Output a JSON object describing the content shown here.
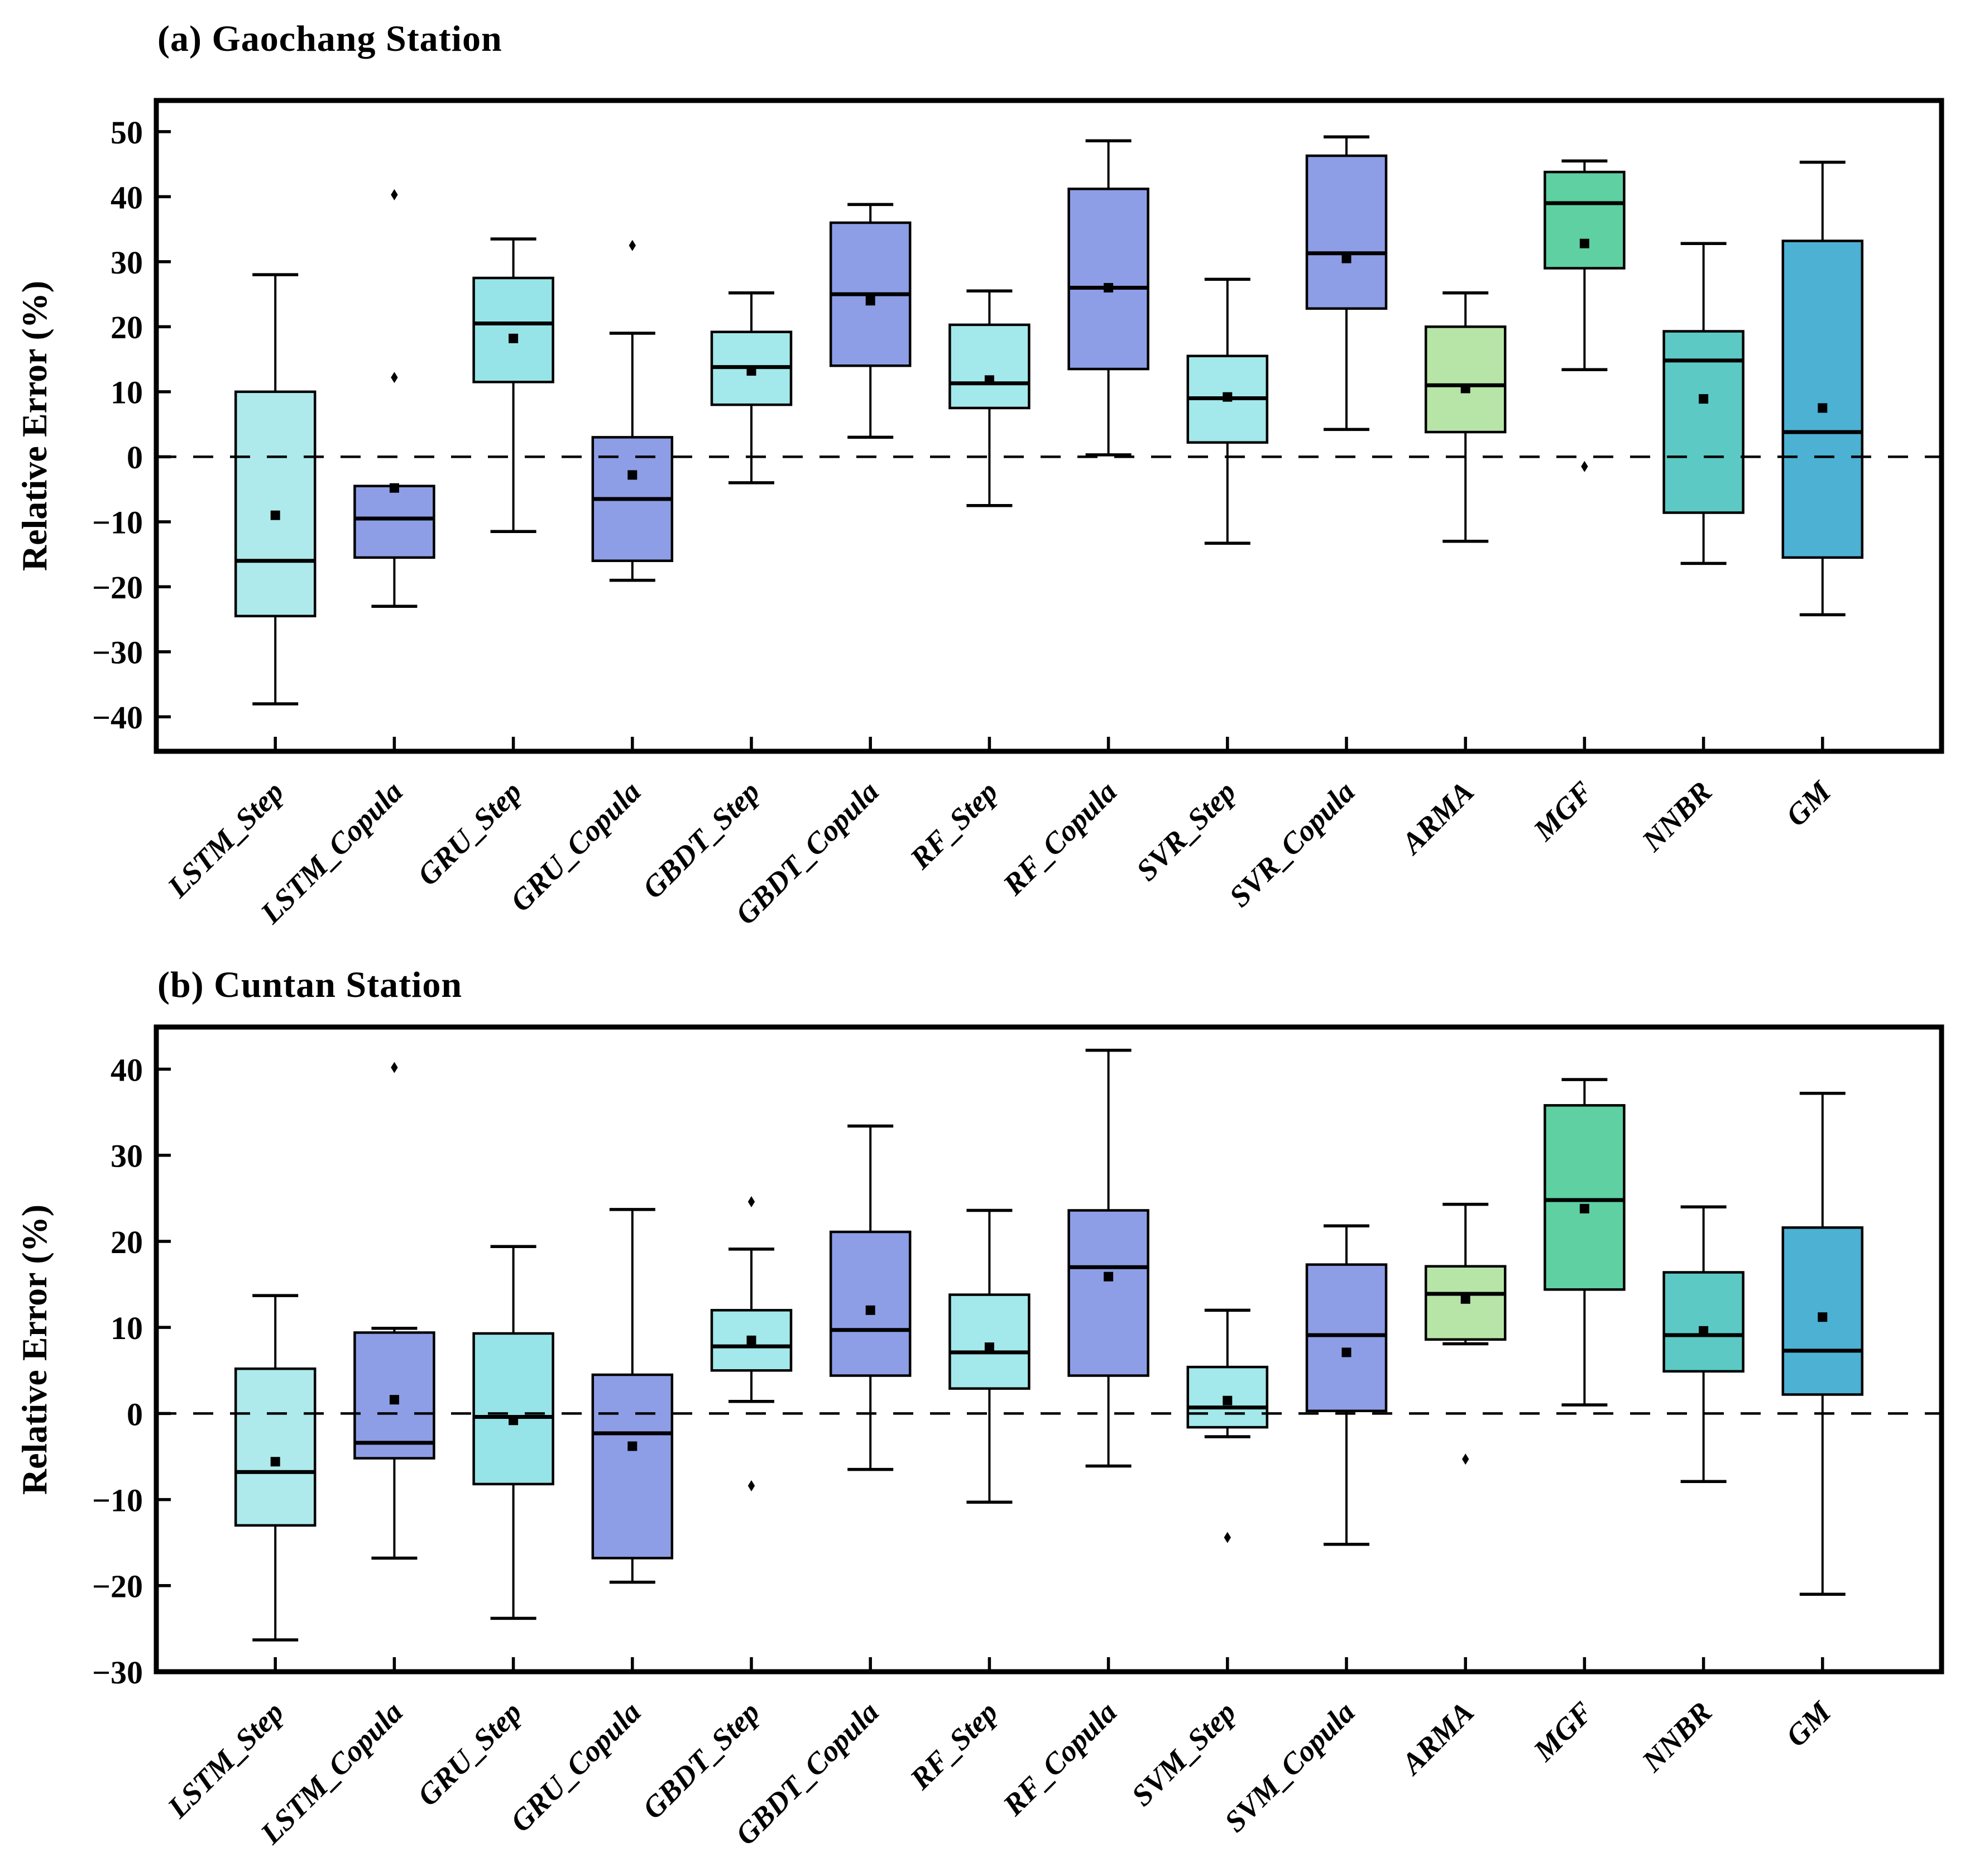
{
  "figure": {
    "background": "#ffffff",
    "marker_legend": {
      "mean_marker": "filled-square",
      "outlier_marker": "filled-diamond",
      "zero_reference_line": "black-dashed"
    }
  },
  "chart_data": [
    {
      "type": "box",
      "title": "(a) Gaochang Station",
      "ylabel": "Relative Error (%)",
      "ylim": [
        -45.3,
        54.8
      ],
      "grid": false,
      "zero_line": true,
      "yticks": [
        {
          "v": 50,
          "label": "50"
        },
        {
          "v": 40,
          "label": "40"
        },
        {
          "v": 30,
          "label": "30"
        },
        {
          "v": 20,
          "label": "20"
        },
        {
          "v": 10,
          "label": "10"
        },
        {
          "v": 0,
          "label": "0"
        },
        {
          "v": -10,
          "label": "−10"
        },
        {
          "v": -20,
          "label": "−20"
        },
        {
          "v": -30,
          "label": "−30"
        },
        {
          "v": -40,
          "label": "−40"
        }
      ],
      "boxes": [
        {
          "category": "LSTM_Step",
          "color": "#aeeaec",
          "low": -38.0,
          "q1": -24.5,
          "median": -16.0,
          "q3": 10.0,
          "high": 28.0,
          "mean": -9.0,
          "outliers": []
        },
        {
          "category": "LSTM_Copula",
          "color": "#8d9ee6",
          "low": -23.0,
          "q1": -15.5,
          "median": -9.5,
          "q3": -4.5,
          "high": -4.5,
          "mean": -4.8,
          "outliers": [
            12.2,
            40.3
          ]
        },
        {
          "category": "GRU_Step",
          "color": "#97e4e8",
          "low": -11.5,
          "q1": 11.5,
          "median": 20.5,
          "q3": 27.5,
          "high": 33.5,
          "mean": 18.2,
          "outliers": []
        },
        {
          "category": "GRU_Copula",
          "color": "#8d9ee6",
          "low": -19.0,
          "q1": -16.0,
          "median": -6.5,
          "q3": 3.0,
          "high": 19.0,
          "mean": -2.8,
          "outliers": [
            32.5
          ]
        },
        {
          "category": "GBDT_Step",
          "color": "#a3e8ea",
          "low": -4.0,
          "q1": 8.0,
          "median": 13.8,
          "q3": 19.2,
          "high": 25.2,
          "mean": 13.2,
          "outliers": []
        },
        {
          "category": "GBDT_Copula",
          "color": "#8d9ee6",
          "low": 3.0,
          "q1": 14.0,
          "median": 25.0,
          "q3": 36.0,
          "high": 38.8,
          "mean": 24.0,
          "outliers": []
        },
        {
          "category": "RF_Step",
          "color": "#a3e8ea",
          "low": -7.5,
          "q1": 7.5,
          "median": 11.3,
          "q3": 20.3,
          "high": 25.5,
          "mean": 11.8,
          "outliers": []
        },
        {
          "category": "RF_Copula",
          "color": "#8d9ee6",
          "low": 0.3,
          "q1": 13.5,
          "median": 26.0,
          "q3": 41.2,
          "high": 48.6,
          "mean": 26.0,
          "outliers": []
        },
        {
          "category": "SVR_Step",
          "color": "#a3e8ea",
          "low": -13.3,
          "q1": 2.2,
          "median": 9.0,
          "q3": 15.5,
          "high": 27.3,
          "mean": 9.2,
          "outliers": []
        },
        {
          "category": "SVR_Copula",
          "color": "#8d9ee6",
          "low": 4.2,
          "q1": 22.8,
          "median": 31.3,
          "q3": 46.3,
          "high": 49.2,
          "mean": 30.5,
          "outliers": []
        },
        {
          "category": "ARMA",
          "color": "#b7e5a8",
          "low": -13.0,
          "q1": 3.8,
          "median": 11.0,
          "q3": 20.0,
          "high": 25.2,
          "mean": 10.5,
          "outliers": []
        },
        {
          "category": "MGF",
          "color": "#5ed0a2",
          "low": 13.4,
          "q1": 29.0,
          "median": 39.0,
          "q3": 43.8,
          "high": 45.5,
          "mean": 32.8,
          "outliers": [
            -1.5
          ]
        },
        {
          "category": "NNBR",
          "color": "#5cc9c4",
          "low": -16.4,
          "q1": -8.6,
          "median": 14.8,
          "q3": 19.3,
          "high": 32.8,
          "mean": 8.9,
          "outliers": []
        },
        {
          "category": "GM",
          "color": "#4db1d3",
          "low": -24.3,
          "q1": -15.5,
          "median": 3.8,
          "q3": 33.2,
          "high": 45.3,
          "mean": 7.5,
          "outliers": []
        }
      ]
    },
    {
      "type": "box",
      "title": "(b) Cuntan Station",
      "ylabel": "Relative Error (%)",
      "ylim": [
        -30.0,
        44.9
      ],
      "grid": false,
      "zero_line": true,
      "yticks": [
        {
          "v": 40,
          "label": "40"
        },
        {
          "v": 30,
          "label": "30"
        },
        {
          "v": 20,
          "label": "20"
        },
        {
          "v": 10,
          "label": "10"
        },
        {
          "v": 0,
          "label": "0"
        },
        {
          "v": -10,
          "label": "−10"
        },
        {
          "v": -20,
          "label": "−20"
        },
        {
          "v": -30,
          "label": "−30"
        }
      ],
      "boxes": [
        {
          "category": "LSTM_Step",
          "color": "#aeeaec",
          "low": -26.3,
          "q1": -13.0,
          "median": -6.8,
          "q3": 5.2,
          "high": 13.7,
          "mean": -5.6,
          "outliers": []
        },
        {
          "category": "LSTM_Copula",
          "color": "#8d9ee6",
          "low": -16.8,
          "q1": -5.2,
          "median": -3.4,
          "q3": 9.4,
          "high": 9.9,
          "mean": 1.6,
          "outliers": [
            40.2
          ]
        },
        {
          "category": "GRU_Step",
          "color": "#97e4e8",
          "low": -23.8,
          "q1": -8.2,
          "median": -0.4,
          "q3": 9.3,
          "high": 19.4,
          "mean": -0.8,
          "outliers": []
        },
        {
          "category": "GRU_Copula",
          "color": "#8d9ee6",
          "low": -19.6,
          "q1": -16.8,
          "median": -2.3,
          "q3": 4.5,
          "high": 23.7,
          "mean": -3.8,
          "outliers": []
        },
        {
          "category": "GBDT_Step",
          "color": "#a3e8ea",
          "low": 1.4,
          "q1": 5.0,
          "median": 7.8,
          "q3": 12.0,
          "high": 19.1,
          "mean": 8.5,
          "outliers": [
            24.6,
            -8.4
          ]
        },
        {
          "category": "GBDT_Copula",
          "color": "#8d9ee6",
          "low": -6.5,
          "q1": 4.4,
          "median": 9.7,
          "q3": 21.1,
          "high": 33.4,
          "mean": 12.0,
          "outliers": []
        },
        {
          "category": "RF_Step",
          "color": "#a3e8ea",
          "low": -10.3,
          "q1": 2.9,
          "median": 7.1,
          "q3": 13.8,
          "high": 23.6,
          "mean": 7.7,
          "outliers": []
        },
        {
          "category": "RF_Copula",
          "color": "#8d9ee6",
          "low": -6.1,
          "q1": 4.4,
          "median": 17.0,
          "q3": 23.6,
          "high": 42.2,
          "mean": 15.9,
          "outliers": []
        },
        {
          "category": "SVM_Step",
          "color": "#a3e8ea",
          "low": -2.7,
          "q1": -1.6,
          "median": 0.7,
          "q3": 5.4,
          "high": 12.0,
          "mean": 1.5,
          "outliers": [
            -14.4
          ]
        },
        {
          "category": "SVM_Copula",
          "color": "#8d9ee6",
          "low": -15.2,
          "q1": 0.3,
          "median": 9.1,
          "q3": 17.3,
          "high": 21.8,
          "mean": 7.1,
          "outliers": []
        },
        {
          "category": "ARMA",
          "color": "#b7e5a8",
          "low": 8.1,
          "q1": 8.6,
          "median": 13.9,
          "q3": 17.1,
          "high": 24.3,
          "mean": 13.3,
          "outliers": [
            -5.3
          ]
        },
        {
          "category": "MGF",
          "color": "#5ed0a2",
          "low": 1.0,
          "q1": 14.4,
          "median": 24.8,
          "q3": 35.8,
          "high": 38.8,
          "mean": 23.8,
          "outliers": []
        },
        {
          "category": "NNBR",
          "color": "#5cc9c4",
          "low": -7.9,
          "q1": 4.9,
          "median": 9.1,
          "q3": 16.4,
          "high": 24.0,
          "mean": 9.6,
          "outliers": []
        },
        {
          "category": "GM",
          "color": "#4db1d3",
          "low": -21.0,
          "q1": 2.2,
          "median": 7.3,
          "q3": 21.6,
          "high": 37.2,
          "mean": 11.2,
          "outliers": []
        }
      ]
    }
  ]
}
